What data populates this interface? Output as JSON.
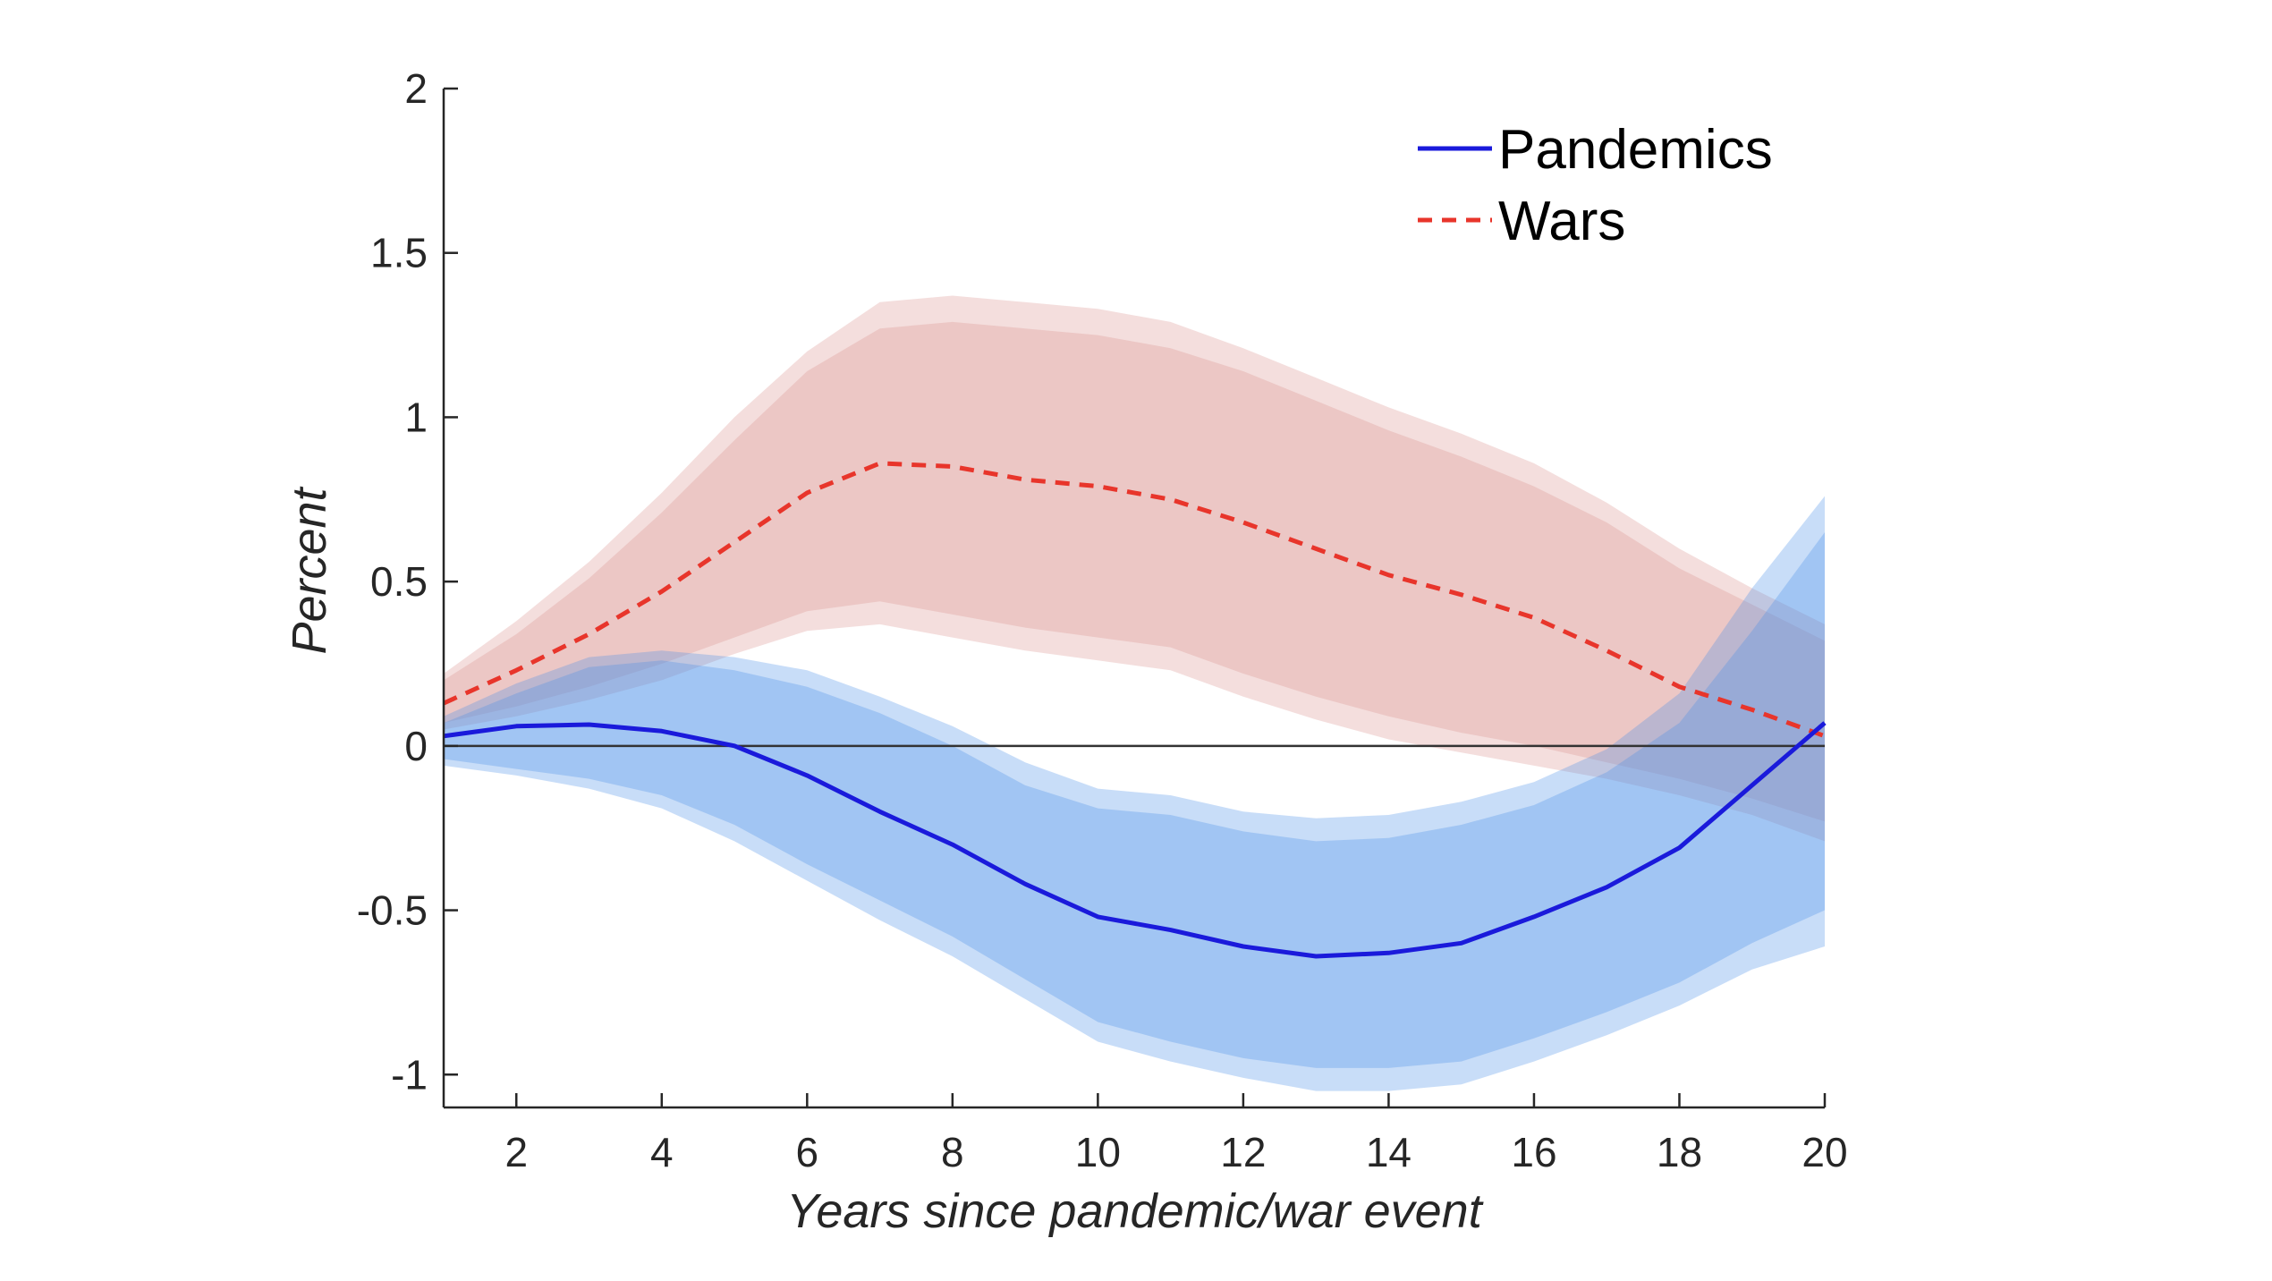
{
  "chart_data": {
    "type": "line",
    "xlabel": "Years since pandemic/war event",
    "ylabel": "Percent",
    "xlim": [
      1,
      20
    ],
    "ylim": [
      -1.1,
      2
    ],
    "xticks": [
      2,
      4,
      6,
      8,
      10,
      12,
      14,
      16,
      18,
      20
    ],
    "yticks": [
      -1,
      -0.5,
      0,
      0.5,
      1,
      1.5,
      2
    ],
    "ytick_labels": [
      "-1",
      "-0.5",
      "0",
      "0.5",
      "1",
      "1.5",
      "2"
    ],
    "grid": false,
    "legend_position": "top-right",
    "x": [
      1,
      2,
      3,
      4,
      5,
      6,
      7,
      8,
      9,
      10,
      11,
      12,
      13,
      14,
      15,
      16,
      17,
      18,
      19,
      20
    ],
    "series": [
      {
        "name": "Pandemics",
        "style": "solid",
        "color": "#1a1adb",
        "band_color": "#4a90e8",
        "values": [
          0.03,
          0.06,
          0.065,
          0.045,
          0.0,
          -0.09,
          -0.2,
          -0.3,
          -0.42,
          -0.52,
          -0.56,
          -0.61,
          -0.64,
          -0.63,
          -0.6,
          -0.52,
          -0.43,
          -0.31,
          -0.12,
          0.07
        ],
        "outer_upper": [
          0.09,
          0.19,
          0.27,
          0.29,
          0.27,
          0.23,
          0.15,
          0.06,
          -0.05,
          -0.13,
          -0.15,
          -0.2,
          -0.22,
          -0.21,
          -0.17,
          -0.11,
          -0.01,
          0.16,
          0.48,
          0.76
        ],
        "outer_lower": [
          -0.06,
          -0.09,
          -0.13,
          -0.19,
          -0.29,
          -0.41,
          -0.53,
          -0.64,
          -0.77,
          -0.9,
          -0.96,
          -1.01,
          -1.05,
          -1.05,
          -1.03,
          -0.96,
          -0.88,
          -0.79,
          -0.68,
          -0.61
        ],
        "inner_upper": [
          0.07,
          0.16,
          0.24,
          0.26,
          0.23,
          0.18,
          0.1,
          0.0,
          -0.12,
          -0.19,
          -0.21,
          -0.26,
          -0.29,
          -0.28,
          -0.24,
          -0.18,
          -0.08,
          0.07,
          0.35,
          0.65
        ],
        "inner_lower": [
          -0.04,
          -0.07,
          -0.1,
          -0.15,
          -0.24,
          -0.36,
          -0.47,
          -0.58,
          -0.71,
          -0.84,
          -0.9,
          -0.95,
          -0.98,
          -0.98,
          -0.96,
          -0.89,
          -0.81,
          -0.72,
          -0.6,
          -0.5
        ]
      },
      {
        "name": "Wars",
        "style": "dashed",
        "color": "#e8352b",
        "band_color": "#d9918f",
        "values": [
          0.13,
          0.23,
          0.34,
          0.47,
          0.62,
          0.77,
          0.86,
          0.85,
          0.81,
          0.79,
          0.75,
          0.68,
          0.6,
          0.52,
          0.46,
          0.39,
          0.29,
          0.18,
          0.11,
          0.03
        ],
        "outer_upper": [
          0.22,
          0.38,
          0.56,
          0.77,
          1.0,
          1.2,
          1.35,
          1.37,
          1.35,
          1.33,
          1.29,
          1.21,
          1.12,
          1.03,
          0.95,
          0.86,
          0.74,
          0.6,
          0.48,
          0.37
        ],
        "outer_lower": [
          0.05,
          0.09,
          0.14,
          0.2,
          0.28,
          0.35,
          0.37,
          0.33,
          0.29,
          0.26,
          0.23,
          0.15,
          0.08,
          0.02,
          -0.02,
          -0.06,
          -0.1,
          -0.15,
          -0.21,
          -0.29
        ],
        "inner_upper": [
          0.2,
          0.34,
          0.51,
          0.71,
          0.93,
          1.14,
          1.27,
          1.29,
          1.27,
          1.25,
          1.21,
          1.14,
          1.05,
          0.96,
          0.88,
          0.79,
          0.68,
          0.54,
          0.43,
          0.32
        ],
        "inner_lower": [
          0.07,
          0.12,
          0.18,
          0.25,
          0.33,
          0.41,
          0.44,
          0.4,
          0.36,
          0.33,
          0.3,
          0.22,
          0.15,
          0.09,
          0.04,
          0.0,
          -0.05,
          -0.1,
          -0.16,
          -0.23
        ]
      }
    ]
  }
}
